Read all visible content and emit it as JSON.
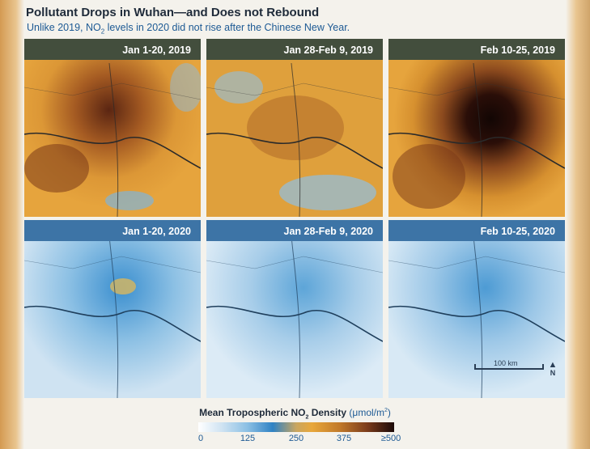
{
  "title": "Pollutant Drops in Wuhan—and Does not Rebound",
  "subtitle": {
    "before": "Unlike 2019, NO",
    "sub": "2",
    "after": " levels in 2020 did not rise after the Chinese New Year."
  },
  "panels": [
    {
      "label": "Jan 1-20, 2019",
      "year": "2019"
    },
    {
      "label": "Jan 28-Feb 9, 2019",
      "year": "2019"
    },
    {
      "label": "Feb 10-25, 2019",
      "year": "2019"
    },
    {
      "label": "Jan 1-20, 2020",
      "year": "2020"
    },
    {
      "label": "Jan 28-Feb 9, 2020",
      "year": "2020"
    },
    {
      "label": "Feb 10-25, 2020",
      "year": "2020"
    }
  ],
  "scale_bar": {
    "label": "100 km"
  },
  "north_arrow": {
    "label": "N"
  },
  "legend": {
    "title_before": "Mean Tropospheric NO",
    "title_sub": "2",
    "title_after": " Density",
    "unit_before": "(μmol/m",
    "unit_sup": "2",
    "unit_after": ")",
    "ticks": [
      "0",
      "125",
      "250",
      "375",
      "≥500"
    ]
  },
  "colors": {
    "high": "#1b0a08",
    "mid": "#e8a73a",
    "low": "#3b8fcf",
    "none": "#ffffff"
  }
}
